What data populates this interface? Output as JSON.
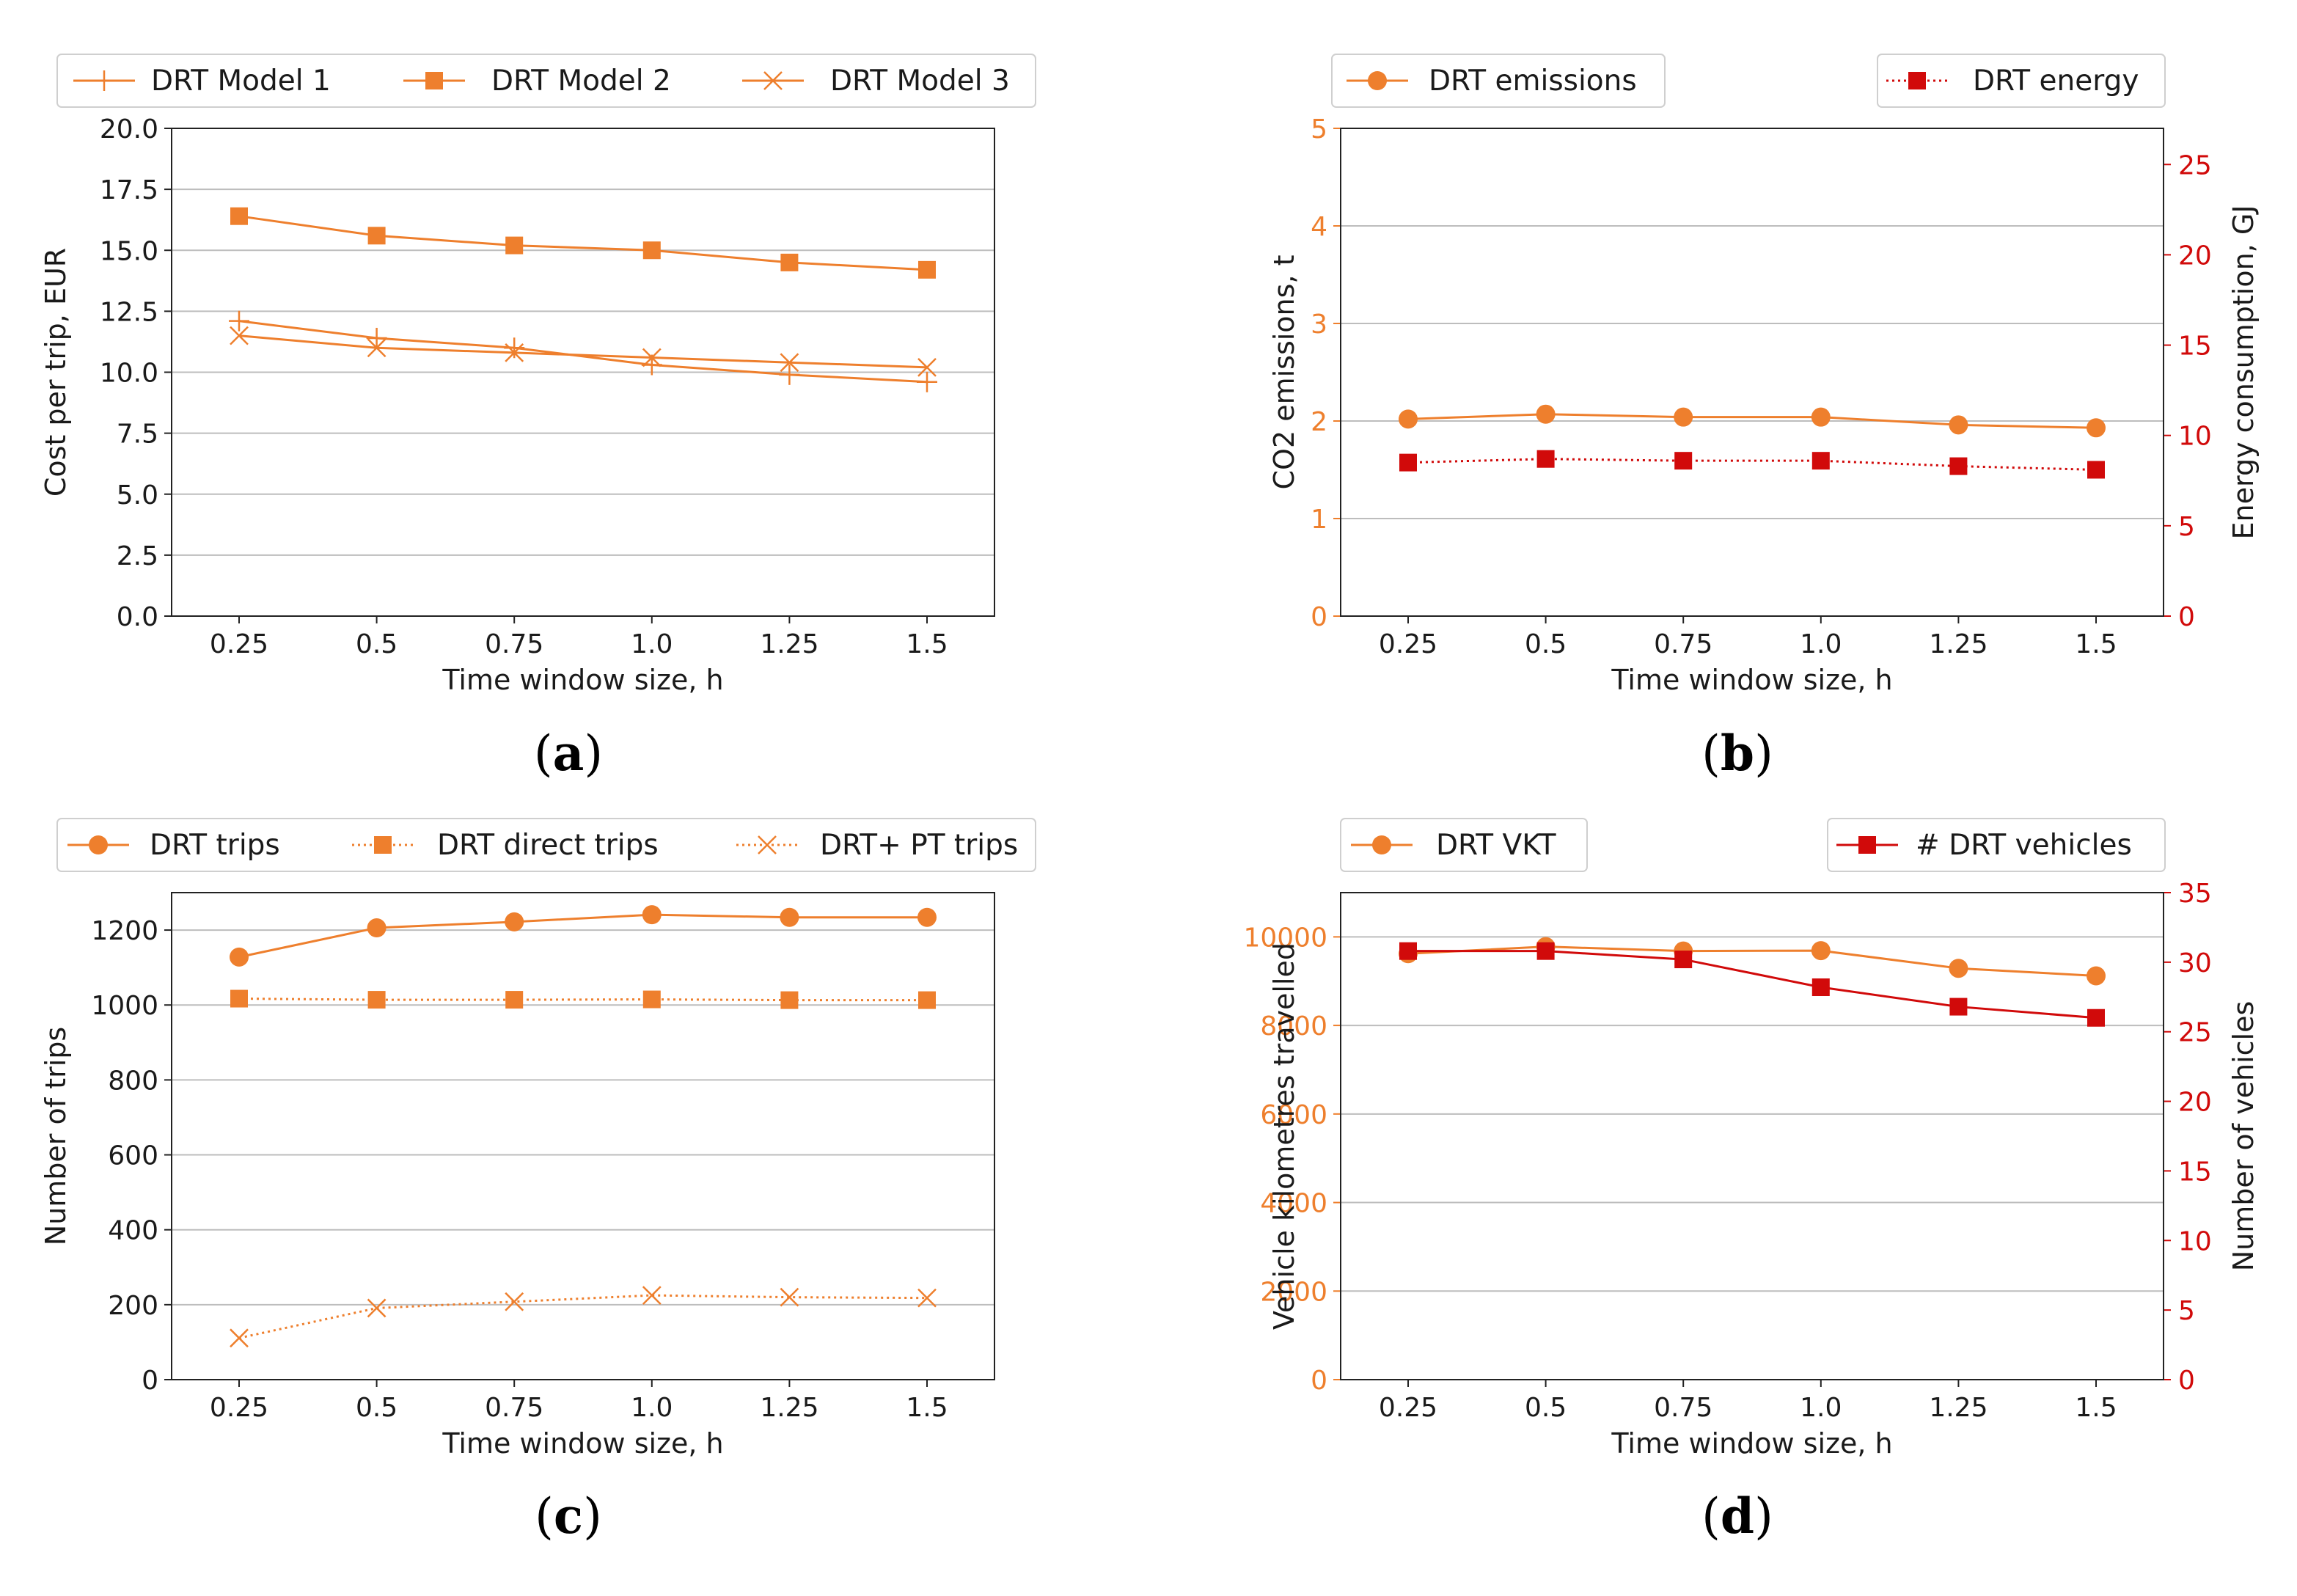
{
  "colors": {
    "orange": "#EE7F2D",
    "red": "#D10A0A",
    "grid": "#BDBDBD",
    "axis": "#222222"
  },
  "chart_data": [
    {
      "id": "a",
      "panel_label": "a",
      "type": "line",
      "xlabel": "Time window size, h",
      "ylabel": "Cost per trip, EUR",
      "categories": [
        "0.25",
        "0.5",
        "0.75",
        "1.0",
        "1.25",
        "1.5"
      ],
      "ylim": [
        0,
        20
      ],
      "yticks": [
        "0.0",
        "2.5",
        "5.0",
        "7.5",
        "10.0",
        "12.5",
        "15.0",
        "17.5",
        "20.0"
      ],
      "series": [
        {
          "name": "DRT Model 1",
          "marker": "plus",
          "line": "solid",
          "color": "orange",
          "values": [
            12.1,
            11.4,
            11.0,
            10.3,
            9.9,
            9.6
          ]
        },
        {
          "name": "DRT Model 2",
          "marker": "square",
          "line": "solid",
          "color": "orange",
          "values": [
            16.4,
            15.6,
            15.2,
            15.0,
            14.5,
            14.2
          ]
        },
        {
          "name": "DRT Model 3",
          "marker": "x",
          "line": "solid",
          "color": "orange",
          "values": [
            11.5,
            11.0,
            10.8,
            10.6,
            10.4,
            10.2
          ]
        }
      ],
      "legend": "top"
    },
    {
      "id": "b",
      "panel_label": "b",
      "type": "line",
      "xlabel": "Time window size, h",
      "ylabel": "CO2 emissions, t",
      "ylabel_right": "Energy consumption, GJ",
      "categories": [
        "0.25",
        "0.5",
        "0.75",
        "1.0",
        "1.25",
        "1.5"
      ],
      "ylim": [
        0,
        5
      ],
      "yticks": [
        "0",
        "1",
        "2",
        "3",
        "4",
        "5"
      ],
      "ylim_right": [
        0,
        27
      ],
      "yticks_right": [
        "0",
        "5",
        "10",
        "15",
        "20",
        "25"
      ],
      "series": [
        {
          "name": "DRT emissions",
          "axis": "left",
          "marker": "circle",
          "line": "solid",
          "color": "orange",
          "values": [
            2.02,
            2.07,
            2.04,
            2.04,
            1.96,
            1.93
          ]
        },
        {
          "name": "DRT energy",
          "axis": "right",
          "marker": "square",
          "line": "dotted",
          "color": "red",
          "values": [
            8.5,
            8.7,
            8.6,
            8.6,
            8.3,
            8.1
          ]
        }
      ],
      "legend": "top"
    },
    {
      "id": "c",
      "panel_label": "c",
      "type": "line",
      "xlabel": "Time window size, h",
      "ylabel": "Number of trips",
      "categories": [
        "0.25",
        "0.5",
        "0.75",
        "1.0",
        "1.25",
        "1.5"
      ],
      "ylim": [
        0,
        1300
      ],
      "yticks": [
        "0",
        "200",
        "400",
        "600",
        "800",
        "1000",
        "1200"
      ],
      "series": [
        {
          "name": "DRT trips",
          "marker": "circle",
          "line": "solid",
          "color": "orange",
          "values": [
            1128,
            1206,
            1222,
            1241,
            1234,
            1234
          ]
        },
        {
          "name": "DRT direct trips",
          "marker": "square",
          "line": "dotted",
          "color": "orange",
          "values": [
            1017,
            1014,
            1014,
            1015,
            1013,
            1013
          ]
        },
        {
          "name": "DRT+ PT trips",
          "marker": "x",
          "line": "dotted",
          "color": "orange",
          "values": [
            111,
            191,
            208,
            225,
            220,
            218
          ]
        }
      ],
      "legend": "top"
    },
    {
      "id": "d",
      "panel_label": "d",
      "type": "line",
      "xlabel": "Time window size, h",
      "ylabel": "Vehicle kilometres travelled",
      "ylabel_right": "Number of vehicles",
      "categories": [
        "0.25",
        "0.5",
        "0.75",
        "1.0",
        "1.25",
        "1.5"
      ],
      "ylim": [
        0,
        11000
      ],
      "yticks": [
        "0",
        "2000",
        "4000",
        "6000",
        "8000",
        "10000"
      ],
      "ylim_right": [
        0,
        35
      ],
      "yticks_right": [
        "0",
        "5",
        "10",
        "15",
        "20",
        "25",
        "30",
        "35"
      ],
      "series": [
        {
          "name": "DRT VKT",
          "axis": "left",
          "marker": "circle",
          "line": "solid",
          "color": "orange",
          "values": [
            9620,
            9780,
            9680,
            9690,
            9290,
            9120
          ]
        },
        {
          "name": "# DRT vehicles",
          "axis": "right",
          "marker": "square",
          "line": "solid",
          "color": "red",
          "values": [
            30.8,
            30.8,
            30.2,
            28.2,
            26.8,
            26.0
          ]
        }
      ],
      "legend": "top"
    }
  ]
}
